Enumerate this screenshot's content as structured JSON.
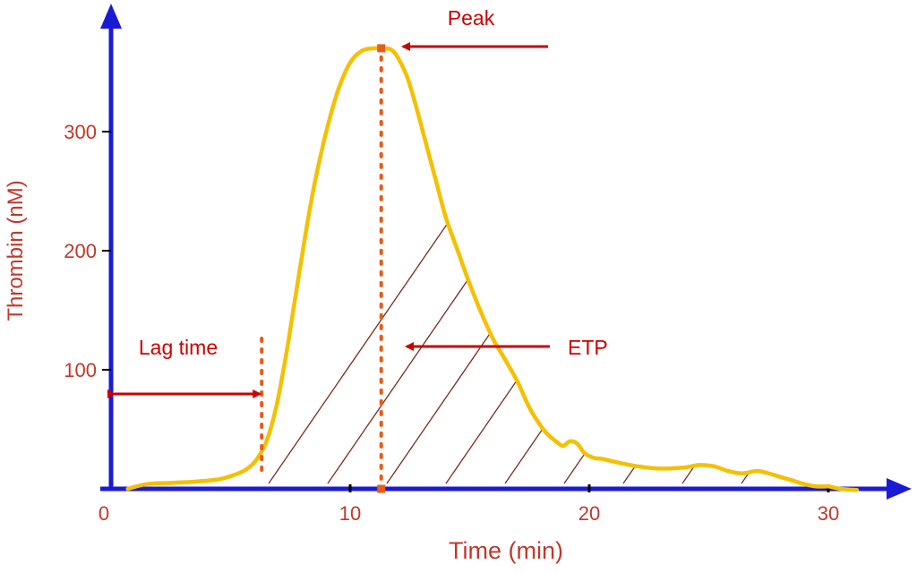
{
  "chart_data": {
    "type": "line",
    "xlabel": "Time (min)",
    "ylabel": "Thrombin (nM)",
    "x_ticks": [
      "0",
      "10",
      "20",
      "30"
    ],
    "x_tick_values": [
      0,
      10,
      20,
      30
    ],
    "y_ticks": [
      "100",
      "200",
      "300"
    ],
    "y_tick_values": [
      100,
      200,
      300
    ],
    "xlim": [
      0,
      33
    ],
    "ylim": [
      0,
      400
    ],
    "grid": false,
    "series": [
      {
        "color": "#f5c000",
        "x": [
          0.7,
          1.5,
          2.5,
          3.5,
          4.5,
          5.2,
          5.7,
          6.1,
          6.5,
          6.9,
          7.3,
          7.7,
          8.1,
          8.5,
          9.0,
          9.5,
          10.0,
          10.5,
          11.0,
          11.3,
          11.7,
          12.0,
          12.4,
          12.8,
          13.2,
          13.6,
          14.0,
          14.5,
          15.0,
          15.5,
          16.0,
          16.5,
          17.0,
          17.5,
          18.0,
          18.3,
          18.6,
          18.9,
          19.2,
          19.5,
          19.8,
          20.2,
          20.6,
          21.0,
          22.0,
          23.0,
          24.0,
          24.6,
          25.2,
          25.8,
          26.4,
          27.0,
          27.5,
          28.0,
          28.5,
          29.0,
          29.5,
          30.0,
          30.5,
          31.2
        ],
        "y": [
          0,
          4,
          5,
          6,
          8,
          12,
          17,
          25,
          40,
          68,
          110,
          160,
          210,
          255,
          300,
          335,
          358,
          368,
          370,
          370,
          369,
          362,
          345,
          318,
          288,
          258,
          228,
          200,
          172,
          147,
          125,
          108,
          90,
          68,
          52,
          45,
          40,
          36,
          40,
          38,
          30,
          26,
          25,
          23,
          19,
          17,
          18,
          20,
          19,
          15,
          13,
          15,
          13,
          10,
          7,
          4,
          2,
          2,
          0,
          -1
        ]
      }
    ],
    "annotations": {
      "peak": {
        "label": "Peak",
        "x": 11.3,
        "y": 370
      },
      "etp": {
        "label": "ETP"
      },
      "lag_time": {
        "label": "Lag time",
        "x": 6.3
      }
    }
  }
}
